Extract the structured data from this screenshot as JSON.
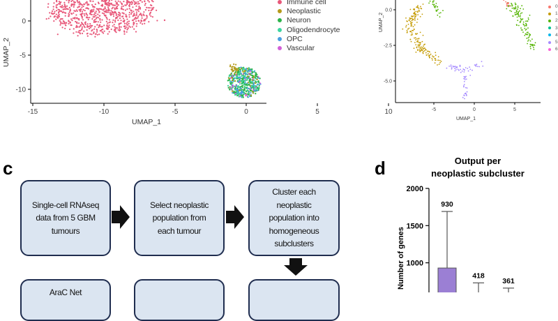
{
  "panels": {
    "c": {
      "letter": "c"
    },
    "d": {
      "letter": "d"
    }
  },
  "umap_left": {
    "xlabel": "UMAP_1",
    "ylabel": "UMAP_2",
    "xticks": [
      "-15",
      "-10",
      "-5",
      "0",
      "5",
      "10"
    ],
    "yticks": [
      "0",
      "-5",
      "-10"
    ],
    "legend": [
      {
        "label": "Immune cell",
        "color": "#e8587a"
      },
      {
        "label": "Neoplastic",
        "color": "#b59a1a"
      },
      {
        "label": "Neuron",
        "color": "#2cb34a"
      },
      {
        "label": "Oligodendrocyte",
        "color": "#3dd6a0"
      },
      {
        "label": "OPC",
        "color": "#4a9fe0"
      },
      {
        "label": "Vascular",
        "color": "#d25fd8"
      }
    ]
  },
  "umap_right": {
    "xlabel": "UMAP_1",
    "ylabel": "UMAP_2",
    "xticks": [
      "-5",
      "0",
      "5"
    ],
    "yticks": [
      "0.0",
      "-2.5",
      "-5.0"
    ],
    "legend": [
      {
        "label": "0",
        "color": "#f8766d"
      },
      {
        "label": "1",
        "color": "#c49a00"
      },
      {
        "label": "2",
        "color": "#53b400"
      },
      {
        "label": "3",
        "color": "#00c094"
      },
      {
        "label": "4",
        "color": "#00b6eb"
      },
      {
        "label": "5",
        "color": "#a58aff"
      },
      {
        "label": "6",
        "color": "#fb61d7"
      }
    ]
  },
  "flowchart": {
    "boxes": [
      {
        "text": "Single-cell RNAseq\ndata from 5 GBM\ntumours"
      },
      {
        "text": "Select neoplastic\npopulation from\neach tumour"
      },
      {
        "text": "Cluster each\nneoplastic\npopulation into\nhomogeneous\nsubclusters"
      },
      {
        "text": "AraC  Net"
      },
      {
        "text": ""
      },
      {
        "text": ""
      }
    ]
  },
  "chart_data": {
    "type": "bar",
    "title": "Output per\nneoplastic subcluster",
    "ylabel": "Number of genes",
    "ylim": [
      0,
      2000
    ],
    "yticks": [
      "2000",
      "1500",
      "1000"
    ],
    "bars": [
      {
        "value": 930,
        "label": "930",
        "err_high": 1690,
        "color": "#9b7fd4"
      },
      {
        "value": 418,
        "label": "418",
        "err_high": 730,
        "color": "#9b7fd4"
      },
      {
        "value": 361,
        "label": "361",
        "err_high": 660,
        "color": "#9b7fd4"
      }
    ]
  }
}
